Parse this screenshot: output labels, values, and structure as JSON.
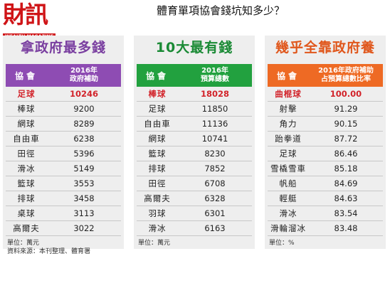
{
  "logo": {
    "main": "財訊",
    "sub": "WEALTH MAGAZINE"
  },
  "page_title": "體育單項協會錢坑知多少？",
  "panels": [
    {
      "title": "拿政府最多錢",
      "header": {
        "col1": "協會",
        "col2_line1": "2016年",
        "col2_line2": "政府補助"
      },
      "rows": [
        {
          "name": "足球",
          "value": "10246",
          "highlight": true
        },
        {
          "name": "棒球",
          "value": "9200"
        },
        {
          "name": "網球",
          "value": "8289"
        },
        {
          "name": "自由車",
          "value": "6238"
        },
        {
          "name": "田徑",
          "value": "5396"
        },
        {
          "name": "滑冰",
          "value": "5149"
        },
        {
          "name": "籃球",
          "value": "3553"
        },
        {
          "name": "排球",
          "value": "3458"
        },
        {
          "name": "桌球",
          "value": "3113"
        },
        {
          "name": "高爾夫",
          "value": "3022"
        }
      ],
      "footnotes": [
        "單位：萬元",
        "資料來源：本刊整理、體育署"
      ]
    },
    {
      "title": "10大最有錢",
      "header": {
        "col1": "協會",
        "col2_line1": "2016年",
        "col2_line2": "預算總數"
      },
      "rows": [
        {
          "name": "棒球",
          "value": "18028",
          "highlight": true
        },
        {
          "name": "足球",
          "value": "11850"
        },
        {
          "name": "自由車",
          "value": "11136"
        },
        {
          "name": "網球",
          "value": "10741"
        },
        {
          "name": "籃球",
          "value": "8230"
        },
        {
          "name": "排球",
          "value": "7852"
        },
        {
          "name": "田徑",
          "value": "6708"
        },
        {
          "name": "高爾夫",
          "value": "6328"
        },
        {
          "name": "羽球",
          "value": "6301"
        },
        {
          "name": "滑冰",
          "value": "6163"
        }
      ],
      "footnotes": [
        "單位：萬元"
      ]
    },
    {
      "title": "幾乎全靠政府養",
      "header": {
        "col1": "協會",
        "col2_line1": "2016年政府補助",
        "col2_line2": "占預算總數比率"
      },
      "rows": [
        {
          "name": "曲棍球",
          "value": "100.00",
          "highlight": true
        },
        {
          "name": "射擊",
          "value": "91.29"
        },
        {
          "name": "角力",
          "value": "90.15"
        },
        {
          "name": "跆拳道",
          "value": "87.72"
        },
        {
          "name": "足球",
          "value": "86.46"
        },
        {
          "name": "雪橇雪車",
          "value": "85.18"
        },
        {
          "name": "帆船",
          "value": "84.69"
        },
        {
          "name": "輕艇",
          "value": "84.63"
        },
        {
          "name": "滑冰",
          "value": "83.54"
        },
        {
          "name": "滑輪溜冰",
          "value": "83.48"
        }
      ],
      "footnotes": [
        "單位：%"
      ]
    }
  ]
}
